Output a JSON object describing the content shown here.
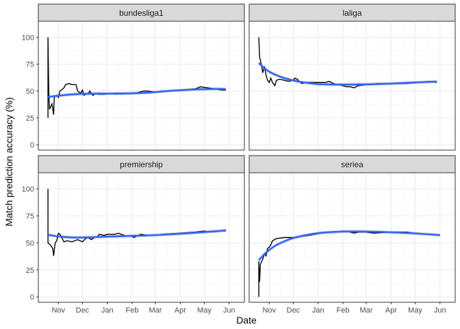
{
  "chart_data": {
    "type": "line",
    "xlabel": "Date",
    "ylabel": "Match prediction accuracy (%)",
    "ylim": [
      -5,
      115
    ],
    "yticks": [
      0,
      25,
      50,
      75,
      100
    ],
    "xlim": [
      "2019-10-07",
      "2020-06-20"
    ],
    "xticks": [
      {
        "date": "2019-11-01",
        "label": "Nov"
      },
      {
        "date": "2019-12-01",
        "label": "Dec"
      },
      {
        "date": "2020-01-01",
        "label": "Jan"
      },
      {
        "date": "2020-02-01",
        "label": "Feb"
      },
      {
        "date": "2020-03-01",
        "label": "Mar"
      },
      {
        "date": "2020-04-01",
        "label": "Apr"
      },
      {
        "date": "2020-05-01",
        "label": "May"
      },
      {
        "date": "2020-06-01",
        "label": "Jun"
      }
    ],
    "grid": true,
    "legend": "none",
    "colors": {
      "panel_bg": "#ffffff",
      "strip_bg": "#d9d9d9",
      "grid_major": "#ebebeb",
      "grid_minor": "#f5f5f5",
      "border": "#333333",
      "accuracy_line": "#000000",
      "smooth_line": "#3366ff",
      "smooth_band": "#999999"
    },
    "panels": [
      {
        "name": "bundesliga1",
        "accuracy": [
          [
            "2019-10-19",
            25
          ],
          [
            "2019-10-19",
            100
          ],
          [
            "2019-10-20",
            50
          ],
          [
            "2019-10-21",
            33
          ],
          [
            "2019-10-24",
            38
          ],
          [
            "2019-10-26",
            28
          ],
          [
            "2019-10-27",
            45
          ],
          [
            "2019-10-30",
            46
          ],
          [
            "2019-11-01",
            44
          ],
          [
            "2019-11-03",
            50
          ],
          [
            "2019-11-05",
            51
          ],
          [
            "2019-11-08",
            53
          ],
          [
            "2019-11-10",
            56
          ],
          [
            "2019-11-14",
            57
          ],
          [
            "2019-11-18",
            56
          ],
          [
            "2019-11-23",
            56
          ],
          [
            "2019-11-25",
            50
          ],
          [
            "2019-11-29",
            48
          ],
          [
            "2019-12-01",
            51
          ],
          [
            "2019-12-03",
            46
          ],
          [
            "2019-12-06",
            48
          ],
          [
            "2019-12-08",
            47
          ],
          [
            "2019-12-10",
            50
          ],
          [
            "2019-12-14",
            46
          ],
          [
            "2019-12-18",
            48
          ],
          [
            "2019-12-21",
            47
          ],
          [
            "2019-12-28",
            47
          ],
          [
            "2020-01-10",
            48
          ],
          [
            "2020-01-20",
            48
          ],
          [
            "2020-02-05",
            48
          ],
          [
            "2020-02-10",
            49
          ],
          [
            "2020-02-15",
            50
          ],
          [
            "2020-02-20",
            50
          ],
          [
            "2020-03-01",
            49
          ],
          [
            "2020-03-10",
            50
          ],
          [
            "2020-04-01",
            51
          ],
          [
            "2020-04-20",
            52
          ],
          [
            "2020-04-26",
            54
          ],
          [
            "2020-05-05",
            53
          ],
          [
            "2020-05-15",
            52
          ],
          [
            "2020-05-22",
            51
          ],
          [
            "2020-05-28",
            51
          ]
        ],
        "smooth": [
          [
            "2019-10-19",
            44.5
          ],
          [
            "2019-11-05",
            46
          ],
          [
            "2019-11-25",
            47.2
          ],
          [
            "2019-12-20",
            47.6
          ],
          [
            "2020-01-20",
            47.6
          ],
          [
            "2020-02-20",
            48.5
          ],
          [
            "2020-03-20",
            50.2
          ],
          [
            "2020-04-20",
            51.5
          ],
          [
            "2020-05-15",
            52
          ],
          [
            "2020-05-28",
            51.8
          ]
        ]
      },
      {
        "name": "laliga",
        "accuracy": [
          [
            "2019-10-19",
            100
          ],
          [
            "2019-10-20",
            82
          ],
          [
            "2019-10-22",
            75
          ],
          [
            "2019-10-24",
            67
          ],
          [
            "2019-10-26",
            73
          ],
          [
            "2019-10-28",
            65
          ],
          [
            "2019-10-30",
            60
          ],
          [
            "2019-11-01",
            58
          ],
          [
            "2019-11-03",
            62
          ],
          [
            "2019-11-05",
            58
          ],
          [
            "2019-11-08",
            55
          ],
          [
            "2019-11-10",
            60
          ],
          [
            "2019-11-14",
            61
          ],
          [
            "2019-11-20",
            60
          ],
          [
            "2019-11-25",
            59
          ],
          [
            "2019-12-01",
            60
          ],
          [
            "2019-12-03",
            62
          ],
          [
            "2019-12-06",
            61
          ],
          [
            "2019-12-08",
            59
          ],
          [
            "2019-12-12",
            57
          ],
          [
            "2019-12-16",
            58
          ],
          [
            "2019-12-20",
            58
          ],
          [
            "2020-01-05",
            58
          ],
          [
            "2020-01-10",
            58
          ],
          [
            "2020-01-15",
            59
          ],
          [
            "2020-01-20",
            57
          ],
          [
            "2020-02-01",
            55
          ],
          [
            "2020-02-05",
            54
          ],
          [
            "2020-02-10",
            54
          ],
          [
            "2020-02-15",
            53
          ],
          [
            "2020-02-20",
            55
          ],
          [
            "2020-03-01",
            56
          ],
          [
            "2020-03-08",
            56
          ],
          [
            "2020-03-15",
            57
          ],
          [
            "2020-04-01",
            57
          ],
          [
            "2020-04-20",
            57
          ],
          [
            "2020-05-05",
            58
          ],
          [
            "2020-05-20",
            59
          ],
          [
            "2020-05-28",
            58
          ]
        ],
        "smooth": [
          [
            "2019-10-19",
            76
          ],
          [
            "2019-11-01",
            68
          ],
          [
            "2019-11-20",
            62
          ],
          [
            "2019-12-10",
            58.5
          ],
          [
            "2020-01-01",
            56.5
          ],
          [
            "2020-02-01",
            56
          ],
          [
            "2020-03-01",
            56.2
          ],
          [
            "2020-04-01",
            57
          ],
          [
            "2020-05-01",
            58
          ],
          [
            "2020-05-28",
            58.8
          ]
        ]
      },
      {
        "name": "premiership",
        "accuracy": [
          [
            "2019-10-19",
            100
          ],
          [
            "2019-10-19",
            50
          ],
          [
            "2019-10-22",
            48
          ],
          [
            "2019-10-25",
            45
          ],
          [
            "2019-10-26",
            38
          ],
          [
            "2019-10-28",
            50
          ],
          [
            "2019-10-30",
            52
          ],
          [
            "2019-11-01",
            59
          ],
          [
            "2019-11-03",
            58
          ],
          [
            "2019-11-05",
            55
          ],
          [
            "2019-11-08",
            51
          ],
          [
            "2019-11-12",
            52
          ],
          [
            "2019-11-18",
            51
          ],
          [
            "2019-11-25",
            53
          ],
          [
            "2019-12-01",
            51
          ],
          [
            "2019-12-05",
            54
          ],
          [
            "2019-12-08",
            55
          ],
          [
            "2019-12-12",
            53
          ],
          [
            "2019-12-16",
            55
          ],
          [
            "2019-12-20",
            56
          ],
          [
            "2019-12-22",
            58
          ],
          [
            "2019-12-28",
            57
          ],
          [
            "2020-01-01",
            58
          ],
          [
            "2020-01-10",
            58
          ],
          [
            "2020-01-15",
            59
          ],
          [
            "2020-01-22",
            57
          ],
          [
            "2020-02-01",
            56
          ],
          [
            "2020-02-03",
            55
          ],
          [
            "2020-02-06",
            56
          ],
          [
            "2020-02-12",
            58
          ],
          [
            "2020-02-20",
            57
          ],
          [
            "2020-03-01",
            57
          ],
          [
            "2020-03-10",
            58
          ],
          [
            "2020-04-01",
            59
          ],
          [
            "2020-04-20",
            60
          ],
          [
            "2020-05-01",
            61
          ],
          [
            "2020-05-10",
            60
          ],
          [
            "2020-05-20",
            61
          ],
          [
            "2020-05-28",
            62
          ]
        ],
        "smooth": [
          [
            "2019-10-19",
            57.5
          ],
          [
            "2019-11-01",
            56
          ],
          [
            "2019-11-20",
            55
          ],
          [
            "2019-12-10",
            55.2
          ],
          [
            "2020-01-01",
            55.8
          ],
          [
            "2020-02-01",
            56.5
          ],
          [
            "2020-03-01",
            57.2
          ],
          [
            "2020-04-01",
            58.5
          ],
          [
            "2020-05-01",
            60
          ],
          [
            "2020-05-28",
            61.5
          ]
        ]
      },
      {
        "name": "seriea",
        "accuracy": [
          [
            "2019-10-19",
            0
          ],
          [
            "2019-10-19",
            33
          ],
          [
            "2019-10-20",
            14
          ],
          [
            "2019-10-21",
            30
          ],
          [
            "2019-10-22",
            32
          ],
          [
            "2019-10-24",
            35
          ],
          [
            "2019-10-26",
            40
          ],
          [
            "2019-10-28",
            38
          ],
          [
            "2019-10-30",
            45
          ],
          [
            "2019-11-01",
            46
          ],
          [
            "2019-11-03",
            48
          ],
          [
            "2019-11-05",
            52
          ],
          [
            "2019-11-10",
            54
          ],
          [
            "2019-11-20",
            55
          ],
          [
            "2019-12-01",
            55
          ],
          [
            "2019-12-10",
            56
          ],
          [
            "2019-12-20",
            57
          ],
          [
            "2020-01-05",
            59
          ],
          [
            "2020-01-20",
            60
          ],
          [
            "2020-02-01",
            61
          ],
          [
            "2020-02-10",
            60
          ],
          [
            "2020-02-15",
            59
          ],
          [
            "2020-02-20",
            60
          ],
          [
            "2020-03-01",
            60
          ],
          [
            "2020-03-10",
            59
          ],
          [
            "2020-04-01",
            60
          ],
          [
            "2020-04-20",
            60
          ],
          [
            "2020-05-01",
            59
          ],
          [
            "2020-05-10",
            58
          ],
          [
            "2020-05-20",
            58
          ],
          [
            "2020-06-01",
            57
          ]
        ],
        "smooth": [
          [
            "2019-10-19",
            34
          ],
          [
            "2019-10-28",
            41
          ],
          [
            "2019-11-10",
            48
          ],
          [
            "2019-12-01",
            54.5
          ],
          [
            "2020-01-01",
            59
          ],
          [
            "2020-02-01",
            60.5
          ],
          [
            "2020-03-01",
            60.5
          ],
          [
            "2020-04-01",
            59.8
          ],
          [
            "2020-05-01",
            58.8
          ],
          [
            "2020-06-01",
            57.2
          ]
        ]
      }
    ]
  }
}
